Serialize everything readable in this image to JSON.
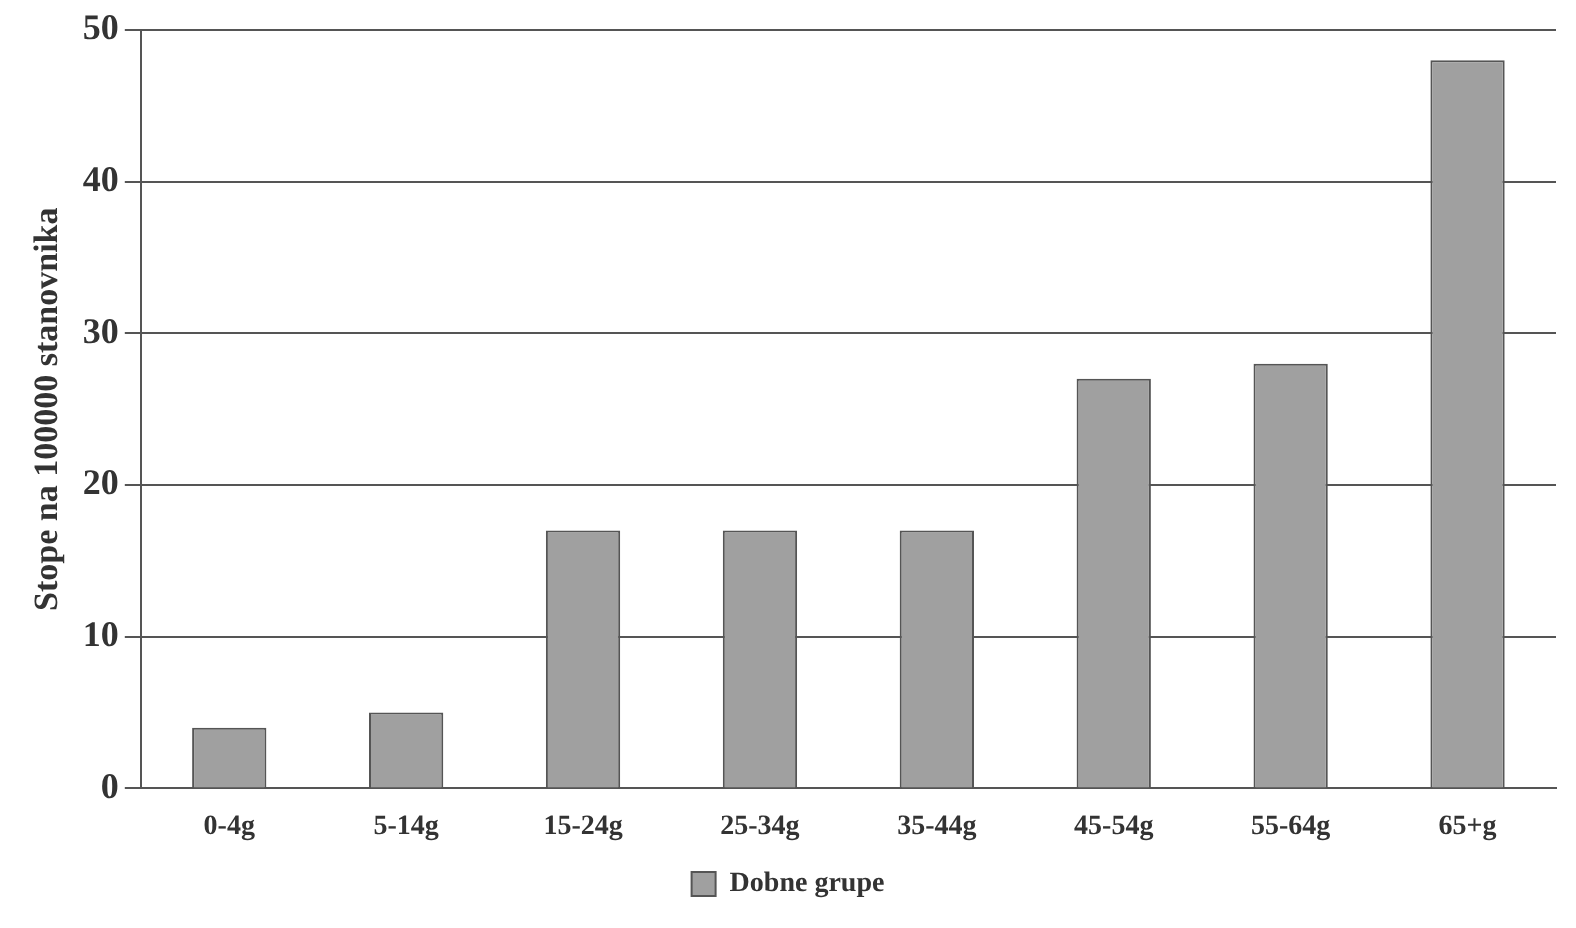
{
  "chart_data": {
    "type": "bar",
    "ylabel": "Stope na 100000 stanovnika",
    "categories": [
      "0-4g",
      "5-14g",
      "15-24g",
      "25-34g",
      "35-44g",
      "45-54g",
      "55-64g",
      "65+g"
    ],
    "series": [
      {
        "name": "Dobne grupe",
        "color": "#a0a0a0",
        "values": [
          4,
          5,
          17,
          17,
          17,
          27,
          28,
          48
        ]
      }
    ],
    "ylim": [
      0,
      50
    ],
    "yticks": [
      0,
      10,
      20,
      30,
      40,
      50
    ],
    "grid": "y",
    "legend": "bottom"
  }
}
